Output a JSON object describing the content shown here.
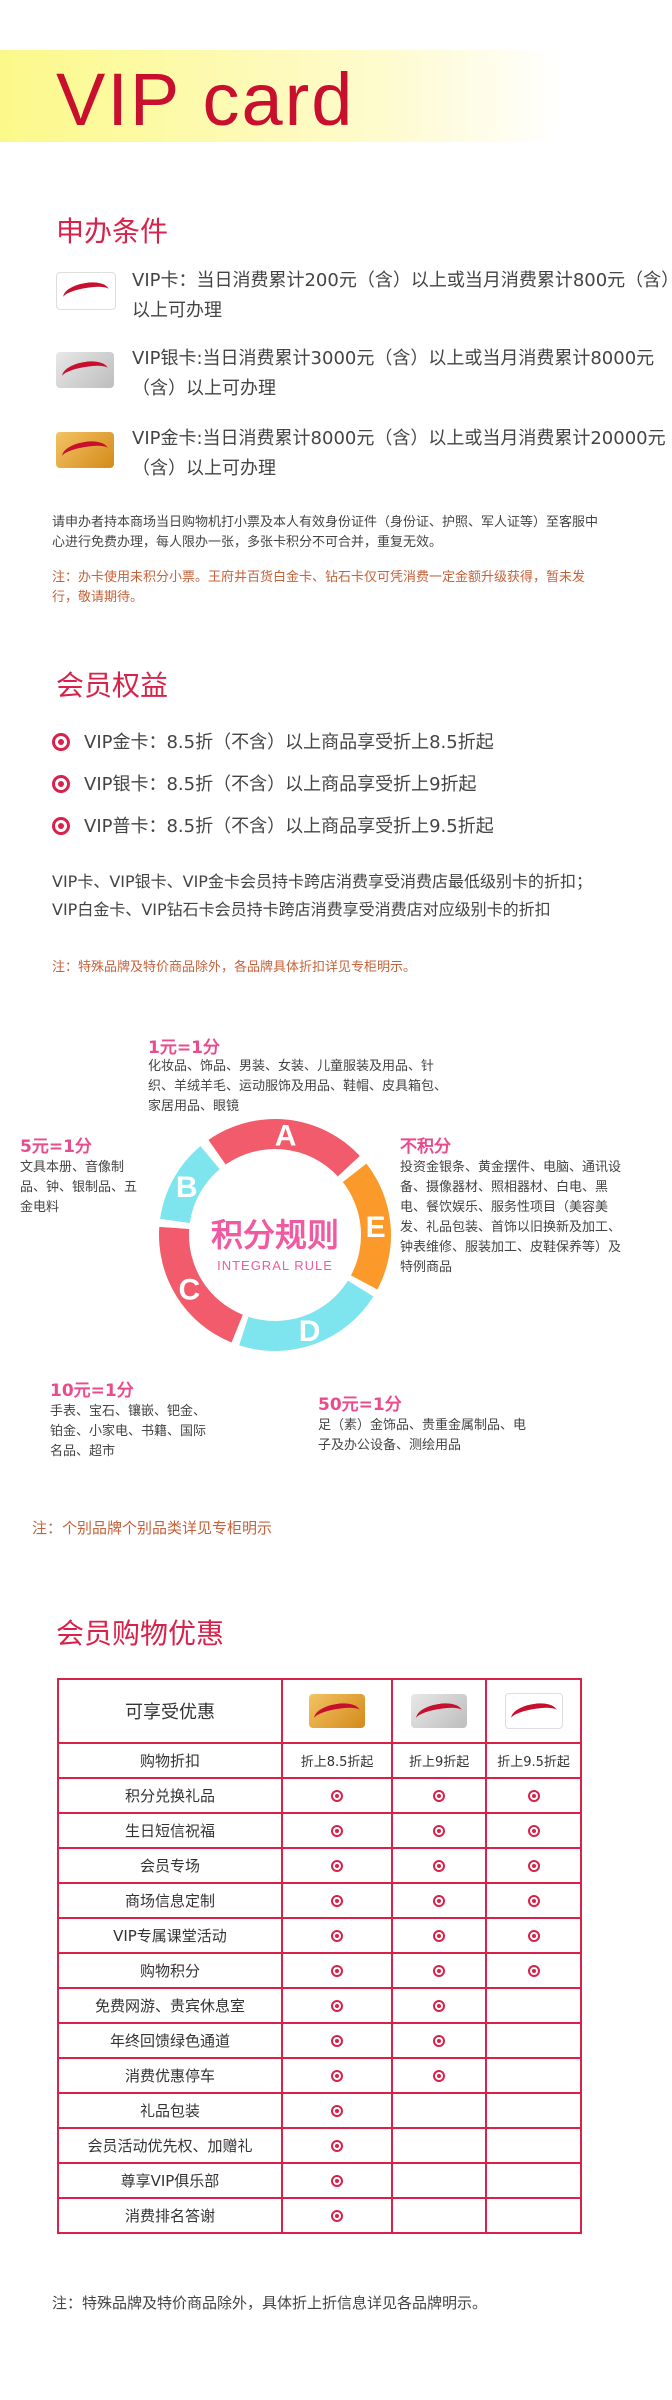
{
  "header": {
    "title": "VIP card"
  },
  "conditions": {
    "title": "申办条件",
    "cards": [
      {
        "card": "plain",
        "text": "VIP卡：当日消费累计200元（含）以上或当月消费累计800元（含）以上可办理"
      },
      {
        "card": "silver",
        "text": "VIP银卡:当日消费累计3000元（含）以上或当月消费累计8000元（含）以上可办理"
      },
      {
        "card": "gold",
        "text": "VIP金卡:当日消费累计8000元（含）以上或当月消费累计20000元（含）以上可办理"
      }
    ],
    "note": "请申办者持本商场当日购物机打小票及本人有效身份证件（身份证、护照、军人证等）至客服中心进行免费办理，每人限办一张，多张卡积分不可合并，重复无效。",
    "warning": "注：办卡使用未积分小票。王府井百货白金卡、钻石卡仅可凭消费一定金额升级获得，暂未发行，敬请期待。"
  },
  "benefits": {
    "title": "会员权益",
    "items": [
      "VIP金卡：8.5折（不含）以上商品享受折上8.5折起",
      "VIP银卡：8.5折（不含）以上商品享受折上9折起",
      "VIP普卡：8.5折（不含）以上商品享受折上9.5折起"
    ],
    "desc": "VIP卡、VIP银卡、VIP金卡会员持卡跨店消费享受消费店最低级别卡的折扣；VIP白金卡、VIP钻石卡会员持卡跨店消费享受消费店对应级别卡的折扣",
    "note": "注：特殊品牌及特价商品除外，各品牌具体折扣详见专柜明示。"
  },
  "points": {
    "center_cn": "积分规则",
    "center_en": "INTEGRAL RULE",
    "segments": [
      {
        "letter": "A",
        "color": "#f25b6b"
      },
      {
        "letter": "E",
        "color": "#fb9a2b"
      },
      {
        "letter": "D",
        "color": "#7ee4ee"
      },
      {
        "letter": "C",
        "color": "#f25b6b"
      },
      {
        "letter": "B",
        "color": "#7ee4ee"
      }
    ],
    "rules": {
      "a_head": "1元=1分",
      "a_body": "化妆品、饰品、男装、女装、儿童服装及用品、针织、羊绒羊毛、运动服饰及用品、鞋帽、皮具箱包、家居用品、眼镜",
      "b_head": "5元=1分",
      "b_body": "文具本册、音像制品、钟、银制品、五金电料",
      "c_head": "10元=1分",
      "c_body": "手表、宝石、镶嵌、钯金、铂金、小家电、书籍、国际名品、超市",
      "d_head": "50元=1分",
      "d_body": "足（素）金饰品、贵重金属制品、电子及办公设备、测绘用品",
      "e_head": "不积分",
      "e_body": "投资金银条、黄金摆件、电脑、通讯设备、摄像器材、照相器材、白电、黑电、餐饮娱乐、服务性项目（美容美发、礼品包装、首饰以旧换新及加工、钟表维修、服装加工、皮鞋保养等）及特例商品"
    },
    "note": "注：个别品牌个别品类详见专柜明示"
  },
  "shopping": {
    "title": "会员购物优惠",
    "header_label": "可享受优惠",
    "rows": [
      {
        "name": "购物折扣",
        "gold": "折上8.5折起",
        "silver": "折上9折起",
        "plain": "折上9.5折起"
      },
      {
        "name": "积分兑换礼品",
        "marks": [
          1,
          1,
          1
        ]
      },
      {
        "name": "生日短信祝福",
        "marks": [
          1,
          1,
          1
        ]
      },
      {
        "name": "会员专场",
        "marks": [
          1,
          1,
          1
        ]
      },
      {
        "name": "商场信息定制",
        "marks": [
          1,
          1,
          1
        ]
      },
      {
        "name": "VIP专属课堂活动",
        "marks": [
          1,
          1,
          1
        ]
      },
      {
        "name": "购物积分",
        "marks": [
          1,
          1,
          1
        ]
      },
      {
        "name": "免费网游、贵宾休息室",
        "marks": [
          1,
          1,
          0
        ]
      },
      {
        "name": "年终回馈绿色通道",
        "marks": [
          1,
          1,
          0
        ]
      },
      {
        "name": "消费优惠停车",
        "marks": [
          1,
          1,
          0
        ]
      },
      {
        "name": "礼品包装",
        "marks": [
          1,
          0,
          0
        ]
      },
      {
        "name": "会员活动优先权、加赠礼",
        "marks": [
          1,
          0,
          0
        ]
      },
      {
        "name": "尊享VIP俱乐部",
        "marks": [
          1,
          0,
          0
        ]
      },
      {
        "name": "消费排名答谢",
        "marks": [
          1,
          0,
          0
        ]
      }
    ],
    "note": "注：特殊品牌及特价商品除外，具体折上折信息详见各品牌明示。"
  }
}
